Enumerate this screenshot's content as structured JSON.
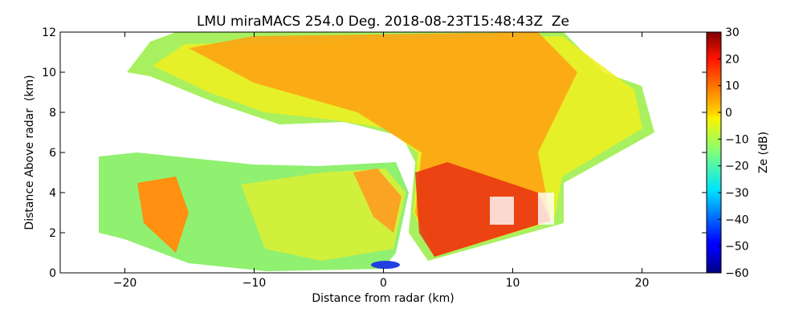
{
  "chart_data": {
    "type": "heatmap",
    "title": "LMU miraMACS 254.0 Deg. 2018-08-23T15:48:43Z  Ze",
    "xlabel": "Distance from radar (km)",
    "ylabel": "Distance Above radar  (km)",
    "xlim": [
      -25,
      25
    ],
    "xticks": [
      {
        "value": -20,
        "label": "−20"
      },
      {
        "value": -10,
        "label": "−10"
      },
      0,
      10,
      20
    ],
    "ylim": [
      0,
      12
    ],
    "yticks": [
      0,
      2,
      4,
      6,
      8,
      10,
      12
    ],
    "colorbar": {
      "label": "Ze (dB)",
      "colormap": "jet",
      "lim": [
        -60,
        30
      ],
      "ticks": [
        {
          "value": -60,
          "label": "−60"
        },
        {
          "value": -50,
          "label": "−50"
        },
        {
          "value": -40,
          "label": "−40"
        },
        {
          "value": -30,
          "label": "−30"
        },
        {
          "value": -20,
          "label": "−20"
        },
        {
          "value": -10,
          "label": "−10"
        },
        0,
        10,
        20,
        30
      ]
    }
  }
}
